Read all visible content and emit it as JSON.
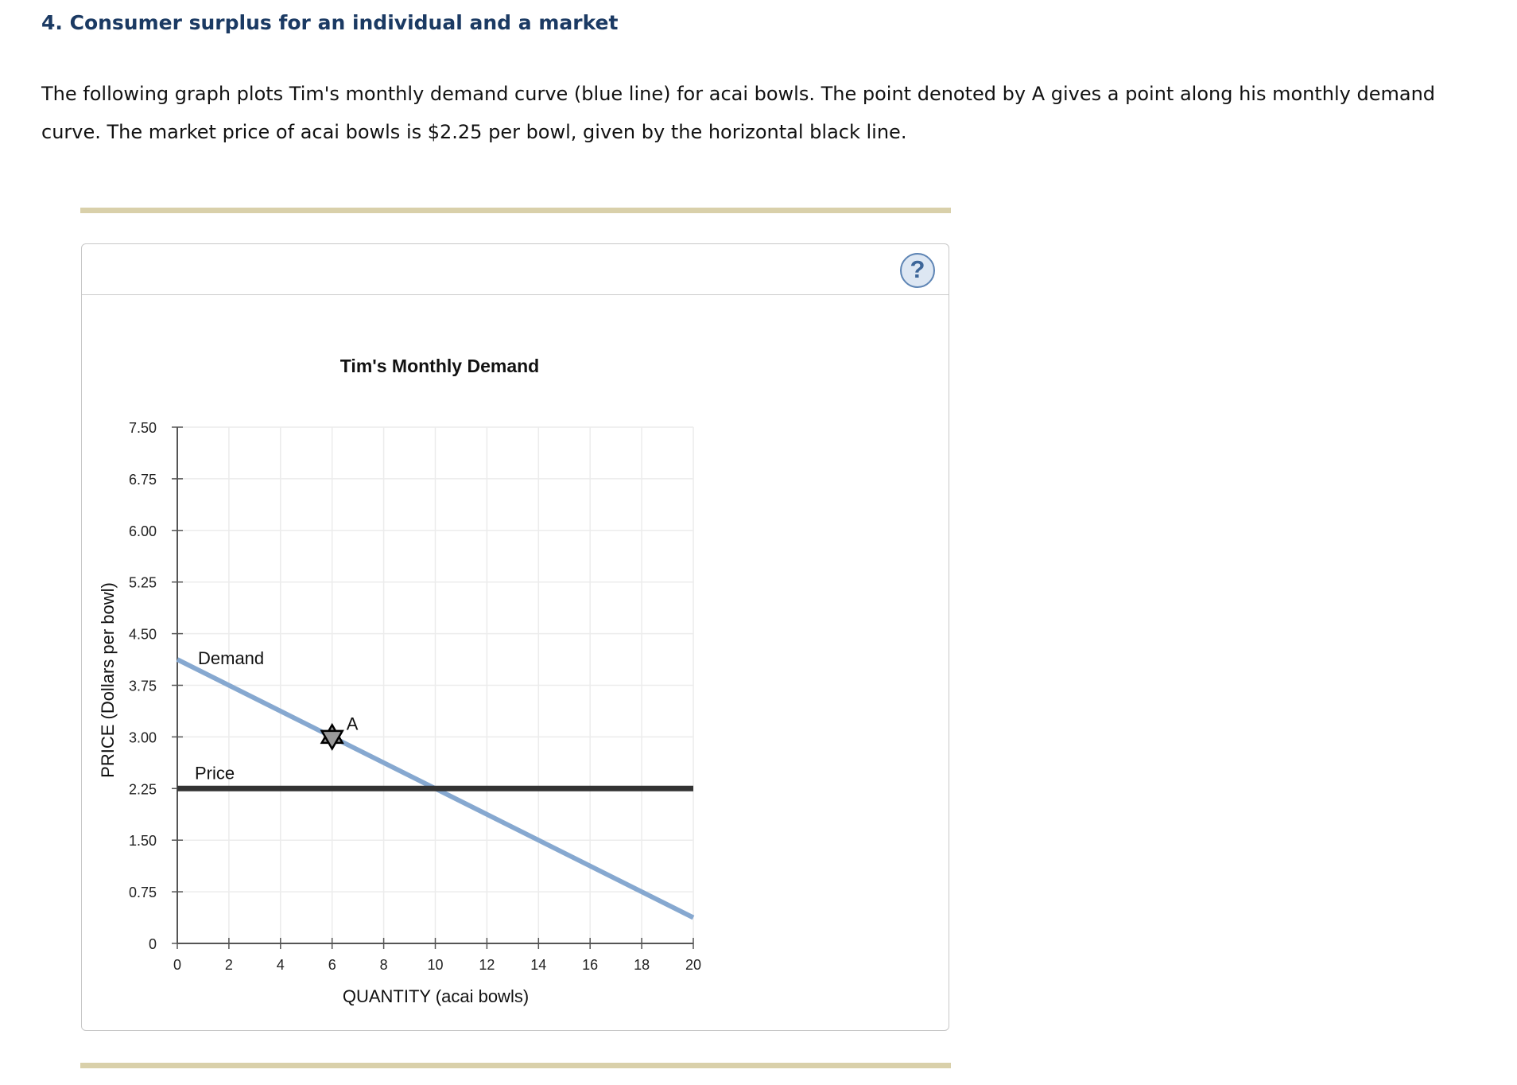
{
  "page": {
    "heading": "4. Consumer surplus for an individual and a market",
    "intro": "The following graph plots Tim's monthly demand curve (blue line) for acai bowls. The point denoted by A gives a point along his monthly demand curve. The market price of acai bowls is $2.25 per bowl, given by the horizontal black line."
  },
  "panel": {
    "help_label": "?"
  },
  "chart_data": {
    "type": "line",
    "title": "Tim's Monthly Demand",
    "xlabel": "QUANTITY (acai bowls)",
    "ylabel": "PRICE (Dollars per bowl)",
    "xlim": [
      0,
      20
    ],
    "ylim": [
      0,
      7.5
    ],
    "x_ticks": [
      0,
      2,
      4,
      6,
      8,
      10,
      12,
      14,
      16,
      18,
      20
    ],
    "x_tick_labels": [
      "0",
      "2",
      "4",
      "6",
      "8",
      "10",
      "12",
      "14",
      "16",
      "18",
      "20"
    ],
    "y_ticks": [
      0,
      0.75,
      1.5,
      2.25,
      3,
      3.75,
      4.5,
      5.25,
      6,
      6.75,
      7.5
    ],
    "y_tick_labels": [
      "0",
      "0.75",
      "1.50",
      "2.25",
      "3.00",
      "3.75",
      "4.50",
      "5.25",
      "6.00",
      "6.75",
      "7.50"
    ],
    "grid": true,
    "series": [
      {
        "name": "Demand",
        "color": "#86a8d0",
        "points": [
          [
            0,
            4.125
          ],
          [
            20,
            0.375
          ]
        ]
      },
      {
        "name": "Price",
        "color": "#333333",
        "points": [
          [
            0,
            2.25
          ],
          [
            20,
            2.25
          ]
        ]
      }
    ],
    "markers": [
      {
        "label": "A",
        "x": 6,
        "y": 3.0,
        "color": "#999999",
        "shape": "star"
      }
    ]
  }
}
